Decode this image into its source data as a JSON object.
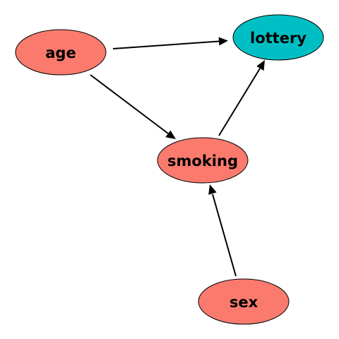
{
  "diagram": {
    "nodes": [
      {
        "id": "age",
        "label": "age",
        "color": "#fa7a6e"
      },
      {
        "id": "lottery",
        "label": "lottery",
        "color": "#00bfc4"
      },
      {
        "id": "smoking",
        "label": "smoking",
        "color": "#fa7a6e"
      },
      {
        "id": "sex",
        "label": "sex",
        "color": "#fa7a6e"
      }
    ],
    "edges": [
      {
        "from": "age",
        "to": "lottery"
      },
      {
        "from": "age",
        "to": "smoking"
      },
      {
        "from": "smoking",
        "to": "lottery"
      },
      {
        "from": "sex",
        "to": "smoking"
      }
    ]
  }
}
